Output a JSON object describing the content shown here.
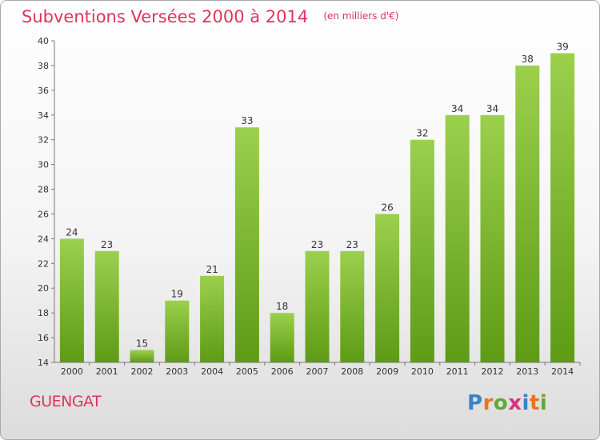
{
  "header": {
    "title": "Subventions Versées 2000 à 2014",
    "subtitle": "(en milliers d'€)"
  },
  "footer": {
    "place": "GUENGAT",
    "logo_text": "Proxiti"
  },
  "colors": {
    "title": "#e0335b",
    "bar_light": "#9bd04d",
    "bar_dark": "#5e9b14",
    "axis": "#777777",
    "label": "#333333"
  },
  "chart_data": {
    "type": "bar",
    "title": "Subventions Versées 2000 à 2014",
    "subtitle": "(en milliers d'€)",
    "categories": [
      "2000",
      "2001",
      "2002",
      "2003",
      "2004",
      "2005",
      "2006",
      "2007",
      "2008",
      "2009",
      "2010",
      "2011",
      "2012",
      "2013",
      "2014"
    ],
    "values": [
      24,
      23,
      15,
      19,
      21,
      33,
      18,
      23,
      23,
      26,
      32,
      34,
      34,
      38,
      39
    ],
    "ylim": [
      14,
      40
    ],
    "yticks": [
      14,
      16,
      18,
      20,
      22,
      24,
      26,
      28,
      30,
      32,
      34,
      36,
      38,
      40
    ],
    "grid": false,
    "legend": "none",
    "data_labels": true
  }
}
